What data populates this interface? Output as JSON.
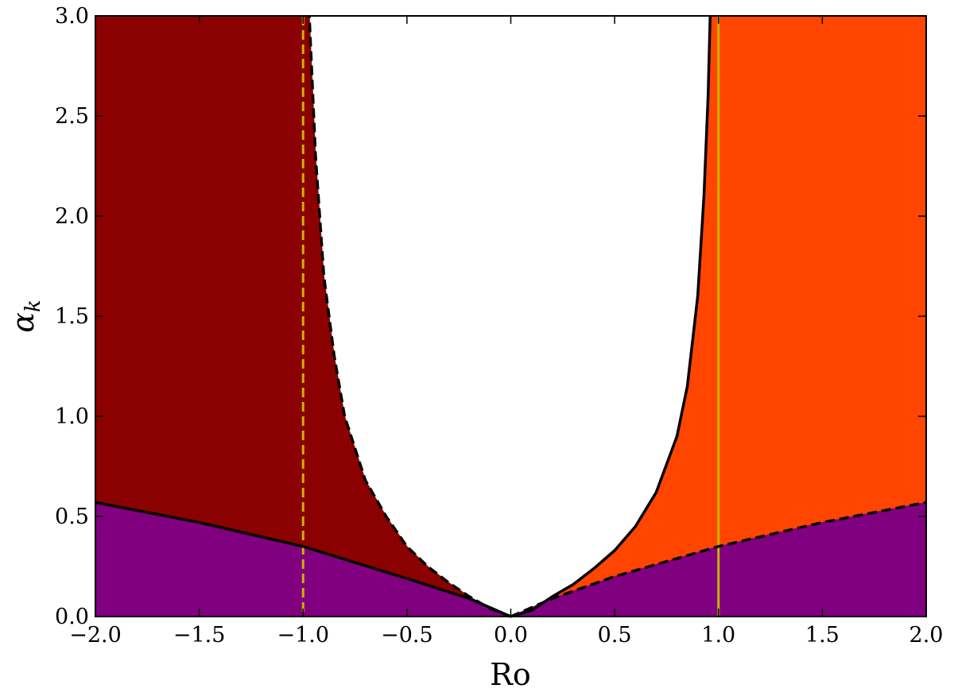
{
  "chart_data": {
    "type": "region",
    "xlabel": "Ro",
    "ylabel": {
      "main": "α",
      "sub": "k"
    },
    "xlim": [
      -2,
      2
    ],
    "ylim": [
      0,
      3
    ],
    "xticks": [
      {
        "value": -2,
        "label": "−2.0"
      },
      {
        "value": -1.5,
        "label": "−1.5"
      },
      {
        "value": -1,
        "label": "−1.0"
      },
      {
        "value": -0.5,
        "label": "−0.5"
      },
      {
        "value": 0,
        "label": "0.0"
      },
      0.5,
      {
        "value": 1,
        "label": "1.0"
      },
      1.5,
      {
        "value": 2,
        "label": "2.0"
      }
    ],
    "yticks": [
      {
        "value": 0,
        "label": "0.0"
      },
      0.5,
      {
        "value": 1,
        "label": "1.0"
      },
      1.5,
      {
        "value": 2,
        "label": "2.0"
      },
      2.5,
      {
        "value": 3,
        "label": "3.0"
      }
    ],
    "region_colors": {
      "lower": "#800080",
      "left": "#8b0000",
      "right": "#ff4500"
    },
    "curves": [
      {
        "x": [
          -2,
          -1.5,
          -1,
          -0.5,
          -0.2,
          0
        ],
        "values": [
          0.57,
          0.47,
          0.35,
          0.19,
          0.09,
          0
        ],
        "color": "#000000",
        "dash": false
      },
      {
        "x": [
          0,
          0.2,
          0.5,
          1,
          1.5,
          2
        ],
        "values": [
          0,
          0.09,
          0.2,
          0.35,
          0.47,
          0.57
        ],
        "color": "#000000",
        "dash": true
      },
      {
        "x": [
          0,
          -0.1,
          -0.2,
          -0.3,
          -0.4,
          -0.5,
          -0.6,
          -0.7,
          -0.8,
          -0.85,
          -0.9,
          -0.94,
          -0.97
        ],
        "values": [
          0,
          0.04,
          0.1,
          0.17,
          0.25,
          0.35,
          0.5,
          0.68,
          1.0,
          1.3,
          1.7,
          2.3,
          3.0
        ],
        "color": "#000000",
        "dash": true
      },
      {
        "x": [
          0,
          0.1,
          0.2,
          0.3,
          0.4,
          0.5,
          0.6,
          0.7,
          0.8,
          0.85,
          0.9,
          0.93,
          0.95,
          0.96
        ],
        "values": [
          0,
          0.03,
          0.1,
          0.16,
          0.24,
          0.33,
          0.45,
          0.62,
          0.9,
          1.15,
          1.6,
          2.1,
          2.6,
          3.0
        ],
        "color": "#000000",
        "dash": false
      }
    ],
    "vlines": [
      {
        "x": -1,
        "color": "#c8b400",
        "dash": true
      },
      {
        "x": 1,
        "color": "#c8b400",
        "dash": false
      }
    ]
  }
}
